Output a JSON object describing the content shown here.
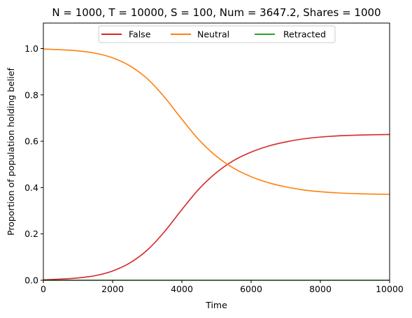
{
  "chart_data": {
    "type": "line",
    "title": "N = 1000, T = 10000, S = 100, Num = 3647.2, Shares = 1000",
    "xlabel": "Time",
    "ylabel": "Proportion of population holding belief",
    "xlim": [
      0,
      10000
    ],
    "ylim": [
      0,
      1.11
    ],
    "xticks": [
      0,
      2000,
      4000,
      6000,
      8000,
      10000
    ],
    "yticks": [
      0.0,
      0.2,
      0.4,
      0.6,
      0.8,
      1.0
    ],
    "xtick_labels": [
      "0",
      "2000",
      "4000",
      "6000",
      "8000",
      "10000"
    ],
    "ytick_labels": [
      "0.0",
      "0.2",
      "0.4",
      "0.6",
      "0.8",
      "1.0"
    ],
    "grid": false,
    "legend_position": "top-center",
    "x": [
      0,
      500,
      1000,
      1500,
      2000,
      2500,
      3000,
      3500,
      4000,
      4500,
      5000,
      5500,
      6000,
      6500,
      7000,
      7500,
      8000,
      8500,
      9000,
      9500,
      10000
    ],
    "series": [
      {
        "name": "False",
        "color": "#d62728",
        "values": [
          0.002,
          0.005,
          0.01,
          0.02,
          0.04,
          0.075,
          0.13,
          0.21,
          0.305,
          0.395,
          0.465,
          0.517,
          0.553,
          0.579,
          0.597,
          0.61,
          0.618,
          0.623,
          0.626,
          0.628,
          0.629
        ]
      },
      {
        "name": "Neutral",
        "color": "#ff7f0e",
        "values": [
          0.998,
          0.995,
          0.99,
          0.98,
          0.96,
          0.925,
          0.87,
          0.79,
          0.695,
          0.605,
          0.535,
          0.483,
          0.447,
          0.421,
          0.403,
          0.39,
          0.382,
          0.377,
          0.374,
          0.372,
          0.371
        ]
      },
      {
        "name": "Retracted",
        "color": "#2ca02c",
        "values": [
          0.0,
          0.0,
          0.0,
          0.0,
          0.0,
          0.0,
          0.0,
          0.0,
          0.0,
          0.0,
          0.0,
          0.0,
          0.0,
          0.0,
          0.0,
          0.0,
          0.0,
          0.0,
          0.0,
          0.0,
          0.0
        ]
      }
    ]
  }
}
